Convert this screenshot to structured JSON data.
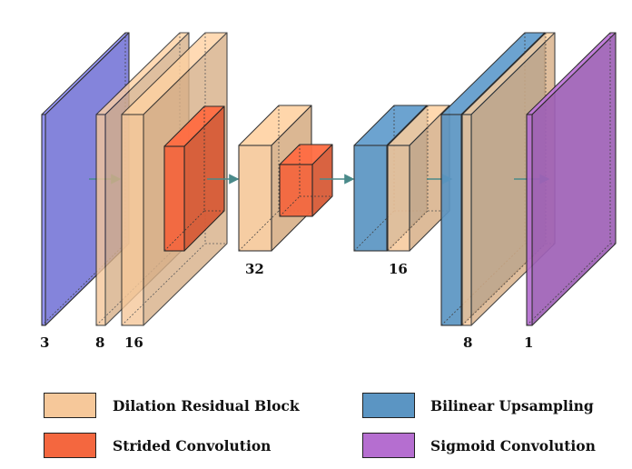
{
  "colors": {
    "input": "#8b8bf5",
    "dilation": "#f6c89a",
    "strided": "#f4673f",
    "upsample": "#5b95c3",
    "sigmoid": "#b56ed0",
    "arrow": "#4a8a8a"
  },
  "labels": {
    "input_channels": "3",
    "block1_channels": "8",
    "block2_channels": "16",
    "mid_channels": "32",
    "up1_channels": "16",
    "up2_channels": "8",
    "output_channels": "1"
  },
  "legend": {
    "dilation": "Dilation Residual Block",
    "strided": "Strided Convolution",
    "upsample": "Bilinear Upsampling",
    "sigmoid": "Sigmoid Convolution"
  }
}
